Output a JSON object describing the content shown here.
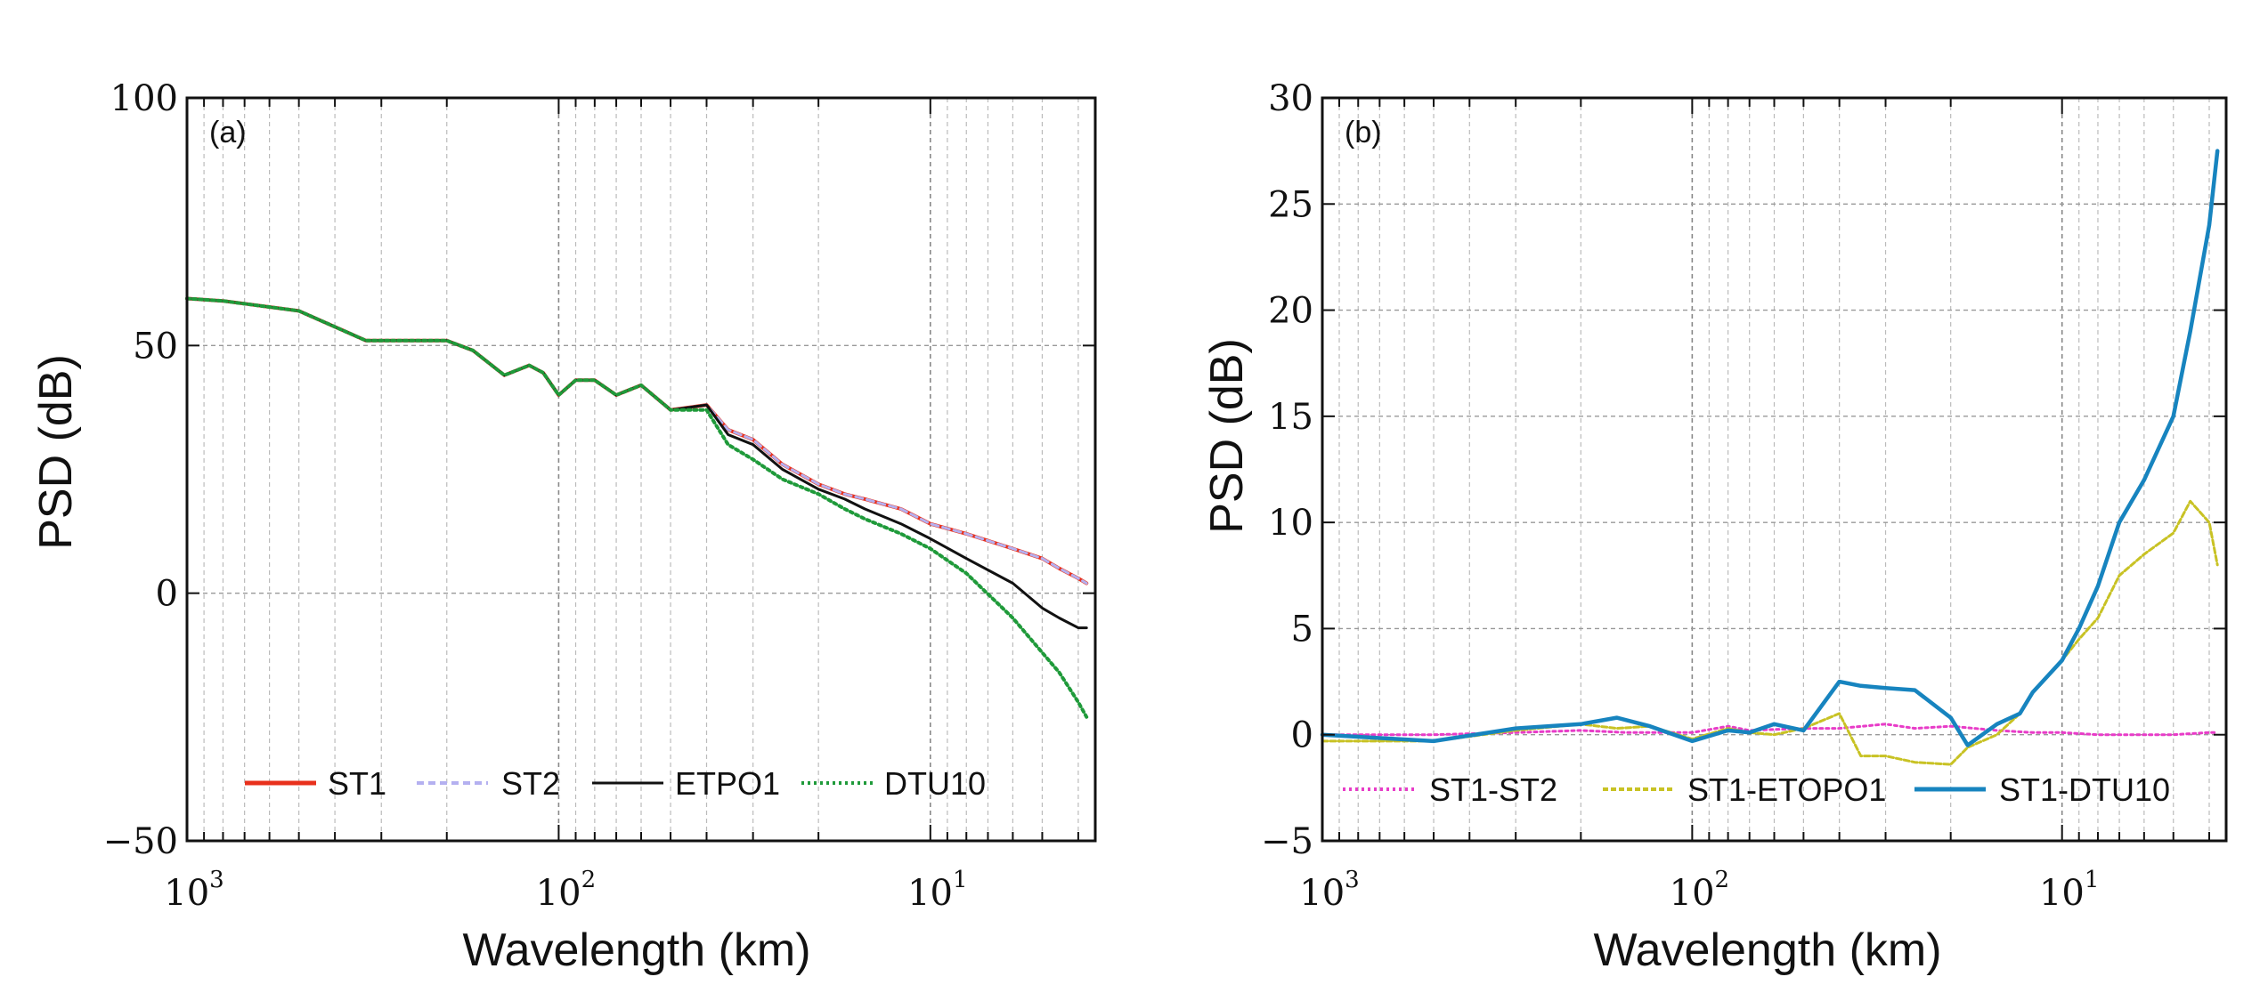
{
  "chart_data": [
    {
      "panel": "(a)",
      "type": "line",
      "xscale": "log-reversed",
      "xlabel": "Wavelength (km)",
      "ylabel": "PSD (dB)",
      "xlim": [
        1000,
        3.6
      ],
      "ylim": [
        -50,
        100
      ],
      "yticks": [
        {
          "v": 100,
          "label": "100"
        },
        {
          "v": 50,
          "label": "50"
        },
        {
          "v": 0,
          "label": "0"
        },
        {
          "v": -50,
          "label": "−50"
        }
      ],
      "xticks": [
        {
          "v": 1000,
          "base": "10",
          "exp": "3"
        },
        {
          "v": 100,
          "base": "10",
          "exp": "2"
        },
        {
          "v": 10,
          "base": "10",
          "exp": "1"
        }
      ],
      "grid": true,
      "legend_position": "bottom",
      "series": [
        {
          "name": "ST1",
          "color": "#e8301c",
          "dash": "",
          "width": 4,
          "x": [
            1000,
            800,
            500,
            330,
            200,
            170,
            140,
            120,
            110,
            100,
            90,
            80,
            70,
            60,
            50,
            40,
            35,
            30,
            25,
            20,
            17,
            15,
            12,
            10,
            8,
            6,
            5,
            4.5,
            4,
            3.8
          ],
          "y": [
            59.5,
            59,
            57,
            51,
            51,
            49,
            44,
            46,
            44.5,
            40,
            43,
            43,
            40,
            42,
            37,
            38,
            33,
            31,
            26,
            22,
            20,
            19,
            17,
            14,
            12,
            9,
            7,
            5,
            3,
            2
          ]
        },
        {
          "name": "ST2",
          "color": "#b4b0f0",
          "dash": "8 5",
          "width": 3,
          "x": [
            1000,
            800,
            500,
            330,
            200,
            170,
            140,
            120,
            110,
            100,
            90,
            80,
            70,
            60,
            50,
            40,
            35,
            30,
            25,
            20,
            17,
            15,
            12,
            10,
            8,
            6,
            5,
            4.5,
            4,
            3.8
          ],
          "y": [
            59.5,
            59,
            57,
            51,
            51,
            49,
            44,
            46,
            44.5,
            40,
            43,
            43,
            40,
            42,
            37,
            38,
            33,
            31,
            26,
            22,
            20,
            19,
            17,
            14,
            12,
            9,
            7,
            5,
            3,
            2
          ]
        },
        {
          "name": "ETPO1",
          "color": "#111111",
          "dash": "",
          "width": 3,
          "x": [
            1000,
            800,
            500,
            330,
            200,
            170,
            140,
            120,
            110,
            100,
            90,
            80,
            70,
            60,
            50,
            40,
            35,
            30,
            25,
            20,
            17,
            15,
            12,
            10,
            8,
            6,
            5,
            4.5,
            4,
            3.8
          ],
          "y": [
            59.5,
            59,
            57,
            51,
            51,
            49,
            44,
            46,
            44.5,
            40,
            43,
            43,
            40,
            42,
            37,
            38,
            32,
            30,
            25,
            21,
            19,
            17,
            14,
            11,
            7,
            2,
            -3,
            -5,
            -7,
            -7
          ]
        },
        {
          "name": "DTU10",
          "color": "#1f9a3a",
          "dash": "3 4",
          "width": 4,
          "x": [
            1000,
            800,
            500,
            330,
            200,
            170,
            140,
            120,
            110,
            100,
            90,
            80,
            70,
            60,
            50,
            40,
            35,
            30,
            25,
            20,
            17,
            15,
            12,
            10,
            8,
            6,
            5,
            4.5,
            4,
            3.8
          ],
          "y": [
            59.5,
            59,
            57,
            51,
            51,
            49,
            44,
            46,
            44.5,
            40,
            43,
            43,
            40,
            42,
            37,
            37,
            30,
            27,
            23,
            20,
            17,
            15,
            12,
            9,
            4,
            -5,
            -12,
            -16,
            -22,
            -25
          ]
        }
      ]
    },
    {
      "panel": "(b)",
      "type": "line",
      "xscale": "log-reversed",
      "xlabel": "Wavelength (km)",
      "ylabel": "PSD (dB)",
      "xlim": [
        1000,
        3.6
      ],
      "ylim": [
        -5,
        30
      ],
      "yticks": [
        {
          "v": 30,
          "label": "30"
        },
        {
          "v": 25,
          "label": "25"
        },
        {
          "v": 20,
          "label": "20"
        },
        {
          "v": 15,
          "label": "15"
        },
        {
          "v": 10,
          "label": "10"
        },
        {
          "v": 5,
          "label": "5"
        },
        {
          "v": 0,
          "label": "0"
        },
        {
          "v": -5,
          "label": "−5"
        }
      ],
      "xticks": [
        {
          "v": 1000,
          "base": "10",
          "exp": "3"
        },
        {
          "v": 100,
          "base": "10",
          "exp": "2"
        },
        {
          "v": 10,
          "base": "10",
          "exp": "1"
        }
      ],
      "grid": true,
      "legend_position": "bottom",
      "series": [
        {
          "name": "ST1-ST2",
          "color": "#e83cc8",
          "dash": "3 4",
          "width": 3,
          "x": [
            1000,
            500,
            300,
            200,
            150,
            100,
            80,
            70,
            50,
            40,
            30,
            25,
            20,
            15,
            12,
            10,
            8,
            6,
            5,
            4,
            3.8
          ],
          "y": [
            0,
            0,
            0.1,
            0.2,
            0.1,
            0.1,
            0.4,
            0.2,
            0.3,
            0.3,
            0.5,
            0.3,
            0.4,
            0.2,
            0.1,
            0.1,
            0,
            0,
            0,
            0.1,
            0.1
          ]
        },
        {
          "name": "ST1-ETOPO1",
          "color": "#c8c224",
          "dash": "6 3",
          "width": 3,
          "x": [
            1000,
            500,
            300,
            200,
            160,
            130,
            100,
            80,
            70,
            60,
            50,
            40,
            35,
            30,
            25,
            20,
            18,
            15,
            13,
            12,
            10,
            9,
            8,
            7,
            6,
            5,
            4.5,
            4,
            3.8
          ],
          "y": [
            -0.3,
            -0.3,
            0.2,
            0.5,
            0.3,
            0.4,
            -0.2,
            0.3,
            0.1,
            0,
            0.3,
            1,
            -1,
            -1,
            -1.3,
            -1.4,
            -0.6,
            0,
            1,
            2,
            3.5,
            4.5,
            5.5,
            7.5,
            8.5,
            9.5,
            11,
            10,
            8
          ]
        },
        {
          "name": "ST1-DTU10",
          "color": "#1784bf",
          "dash": "",
          "width": 4.5,
          "x": [
            1000,
            500,
            300,
            200,
            160,
            130,
            100,
            80,
            70,
            60,
            50,
            40,
            35,
            30,
            25,
            20,
            18,
            15,
            13,
            12,
            10,
            9,
            8,
            7,
            6,
            5,
            4.5,
            4,
            3.8
          ],
          "y": [
            0,
            -0.3,
            0.3,
            0.5,
            0.8,
            0.4,
            -0.3,
            0.2,
            0.1,
            0.5,
            0.2,
            2.5,
            2.3,
            2.2,
            2.1,
            0.8,
            -0.5,
            0.5,
            1,
            2,
            3.5,
            5,
            7,
            10,
            12,
            15,
            19,
            24,
            27.5
          ]
        }
      ]
    }
  ]
}
